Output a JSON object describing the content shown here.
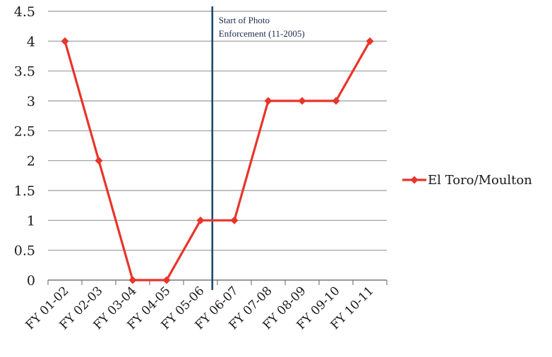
{
  "chart_data": {
    "type": "line",
    "title": "",
    "xlabel": "",
    "ylabel": "",
    "categories": [
      "FY 01-02",
      "FY 02-03",
      "FY 03-04",
      "FY 04-05",
      "FY 05-06",
      "FY 06-07",
      "FY 07-08",
      "FY 08-09",
      "FY 09-10",
      "FY 10-11"
    ],
    "series": [
      {
        "name": "El Toro/Moulton",
        "values": [
          4,
          2,
          0,
          0,
          1,
          1,
          3,
          3,
          3,
          4
        ],
        "color": "#e8342a"
      }
    ],
    "ylim": [
      0,
      4.5
    ],
    "yticks": [
      "0",
      "0.5",
      "1",
      "1.5",
      "2",
      "2.5",
      "3",
      "3.5",
      "4",
      "4.5"
    ],
    "grid": true,
    "legend_position": "right",
    "annotation": {
      "line1": "Start of Photo",
      "line2": "Enforcement (11-2005)",
      "position": 4.35,
      "color": "#1b4a6b"
    }
  }
}
